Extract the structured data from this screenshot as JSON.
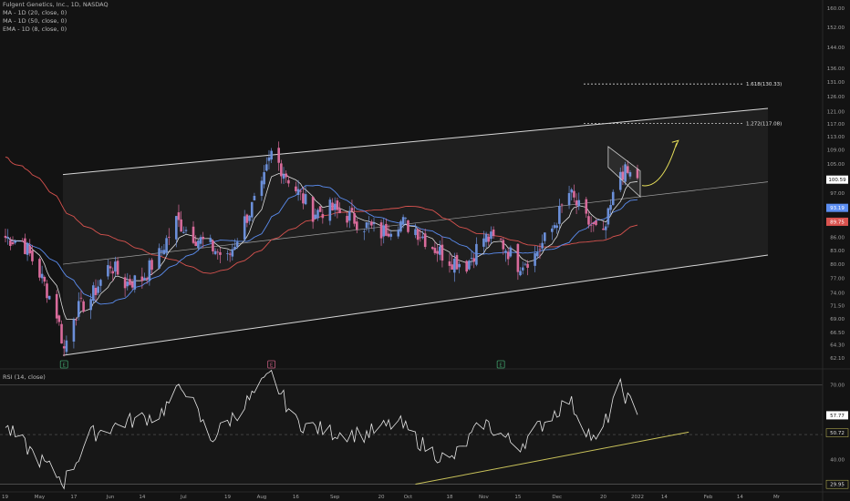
{
  "legend": {
    "symbol": "Fulgent Genetics, Inc., 1D, NASDAQ",
    "ma20": "MA - 1D (20, close, 0)",
    "ma50": "MA - 1D (50, close, 0)",
    "ema8": "EMA - 1D (8, close, 0)",
    "rsi": "RSI (14, close)"
  },
  "colors": {
    "background": "#131313",
    "up": "#6b8fd9",
    "down": "#d96b9b",
    "ma20": "#5b8df0",
    "ma50": "#d9534f",
    "ema8": "#e0e0e0",
    "channel": "#d8d8d8",
    "forecast": "#e8e05a",
    "trendline": "#c9c25a"
  },
  "chart_data": [
    {
      "type": "candlestick",
      "title": "",
      "x_axis": {
        "type": "date",
        "tick_labels": [
          "19",
          "May",
          "17",
          "Jun",
          "14",
          "Jul",
          "19",
          "Aug",
          "16",
          "Sep",
          "20",
          "Oct",
          "18",
          "Nov",
          "15",
          "Dec",
          "20",
          "2022",
          "14",
          "Feb",
          "14",
          "Mr"
        ]
      },
      "y_axis": {
        "scale": "log",
        "ylim": [
          61,
          162
        ],
        "tick_labels": [
          "62.10",
          "64.30",
          "66.50",
          "69.00",
          "71.50",
          "74.00",
          "77.00",
          "80.00",
          "83.00",
          "86.00",
          "89.75",
          "93.19",
          "97.00",
          "100.59",
          "105.00",
          "109.00",
          "113.00",
          "117.00",
          "121.00",
          "126.00",
          "131.00",
          "136.00",
          "144.00",
          "152.00",
          "160.00"
        ]
      },
      "price_close_trajectory": [
        [
          "Apr 19",
          86
        ],
        [
          "Apr 26",
          85
        ],
        [
          "May 03",
          78
        ],
        [
          "May 10",
          70
        ],
        [
          "May 13",
          63.5
        ],
        [
          "May 17",
          70
        ],
        [
          "May 24",
          73
        ],
        [
          "Jun 01",
          80
        ],
        [
          "Jun 07",
          76
        ],
        [
          "Jun 14",
          77
        ],
        [
          "Jun 21",
          82
        ],
        [
          "Jun 28",
          90
        ],
        [
          "Jul 06",
          86
        ],
        [
          "Jul 12",
          84
        ],
        [
          "Jul 19",
          81
        ],
        [
          "Jul 26",
          90
        ],
        [
          "Aug 02",
          98
        ],
        [
          "Aug 06",
          108
        ],
        [
          "Aug 09",
          105
        ],
        [
          "Aug 16",
          98
        ],
        [
          "Aug 23",
          92
        ],
        [
          "Aug 30",
          93
        ],
        [
          "Sep 07",
          91
        ],
        [
          "Sep 13",
          89
        ],
        [
          "Sep 20",
          87
        ],
        [
          "Sep 27",
          90
        ],
        [
          "Oct 04",
          88
        ],
        [
          "Oct 11",
          84
        ],
        [
          "Oct 18",
          81
        ],
        [
          "Oct 25",
          80
        ],
        [
          "Nov 01",
          86
        ],
        [
          "Nov 08",
          85
        ],
        [
          "Nov 15",
          80
        ],
        [
          "Nov 22",
          82
        ],
        [
          "Nov 29",
          88
        ],
        [
          "Dec 06",
          97
        ],
        [
          "Dec 13",
          90
        ],
        [
          "Dec 20",
          86
        ],
        [
          "Dec 27",
          103
        ],
        [
          "Jan 03",
          101
        ]
      ],
      "overlays": {
        "ma20_last": 93.19,
        "ma50_last": 89.75,
        "price_last": 100.59
      },
      "fibonacci_labels": [
        "1.618(130.33)",
        "1.272(117.08)"
      ],
      "fibonacci_levels": [
        130.33,
        117.08
      ],
      "price_labels": [
        "100.59",
        "93.19",
        "89.75"
      ],
      "earnings_markers": [
        "E",
        "E",
        "E"
      ],
      "channel": {
        "upper_start": 102,
        "upper_end": 122,
        "mid_start": 80,
        "mid_end": 100,
        "lower_start": 62.5,
        "lower_end": 82
      }
    },
    {
      "type": "line",
      "title": "",
      "y_axis": {
        "ylim": [
          28,
          75
        ],
        "tick_labels": [
          "70.00",
          "60.00",
          "50.00",
          "40.00"
        ]
      },
      "levels": [
        70,
        30
      ],
      "value_labels": [
        "57.77",
        "50.72",
        "29.95"
      ],
      "rsi_trajectory": [
        [
          "Apr 19",
          53
        ],
        [
          "May 03",
          40
        ],
        [
          "May 13",
          31
        ],
        [
          "May 24",
          50
        ],
        [
          "Jun 07",
          55
        ],
        [
          "Jun 21",
          58
        ],
        [
          "Jul 01",
          70
        ],
        [
          "Jul 12",
          48
        ],
        [
          "Jul 26",
          62
        ],
        [
          "Aug 06",
          74
        ],
        [
          "Aug 16",
          55
        ],
        [
          "Aug 30",
          51
        ],
        [
          "Sep 13",
          50
        ],
        [
          "Sep 27",
          55
        ],
        [
          "Oct 08",
          45
        ],
        [
          "Oct 18",
          39
        ],
        [
          "Nov 01",
          55
        ],
        [
          "Nov 15",
          45
        ],
        [
          "Nov 29",
          58
        ],
        [
          "Dec 06",
          64
        ],
        [
          "Dec 17",
          46
        ],
        [
          "Dec 27",
          69
        ],
        [
          "Jan 03",
          58
        ]
      ],
      "trendline": {
        "start": [
          "Oct 04",
          30
        ],
        "end": [
          "Jan 24",
          51
        ]
      }
    }
  ]
}
